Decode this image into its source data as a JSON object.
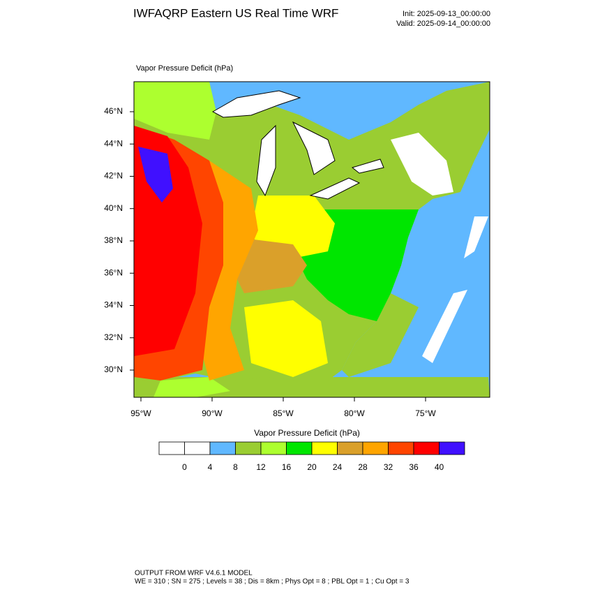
{
  "header": {
    "title": "IWFAQRP Eastern US Real Time WRF",
    "init": "Init: 2025-09-13_00:00:00",
    "valid": "Valid: 2025-09-14_00:00:00"
  },
  "map": {
    "field_label": "Vapor Pressure Deficit   (hPa)",
    "lat_labels": [
      "46°N",
      "44°N",
      "42°N",
      "40°N",
      "38°N",
      "36°N",
      "34°N",
      "32°N",
      "30°N"
    ],
    "lon_labels": [
      "95°W",
      "90°W",
      "85°W",
      "80°W",
      "75°W"
    ]
  },
  "colorbar": {
    "title": "Vapor Pressure Deficit (hPa)",
    "colors": [
      "#ffffff",
      "#ffffff",
      "#60b8ff",
      "#9acd32",
      "#adff2f",
      "#00e600",
      "#ffff00",
      "#daa02a",
      "#ffa500",
      "#ff4500",
      "#ff0000",
      "#4010ff"
    ],
    "labels": [
      "0",
      "4",
      "8",
      "12",
      "16",
      "20",
      "24",
      "28",
      "32",
      "36",
      "40"
    ]
  },
  "footer": {
    "line1": "OUTPUT FROM WRF V4.6.1 MODEL",
    "line2": "WE = 310 ; SN = 275 ; Levels = 38 ; Dis = 8km ; Phys Opt = 8 ; PBL Opt = 1 ; Cu Opt = 3"
  }
}
